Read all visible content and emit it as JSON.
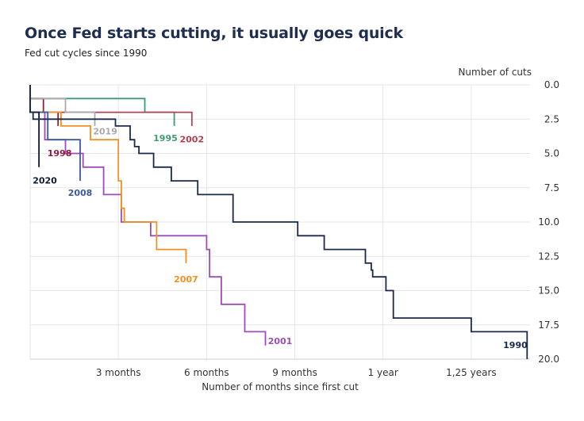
{
  "chart_data": {
    "type": "line",
    "title": "Once Fed starts cutting, it usually goes quick",
    "subtitle": "Fed cut cycles since 1990",
    "xlabel": "Number of months since first cut",
    "ylabel": "Number of cuts",
    "xlim": [
      0,
      17
    ],
    "ylim": [
      20,
      0
    ],
    "x_ticks": [
      {
        "value": 3,
        "label": "3 months"
      },
      {
        "value": 6,
        "label": "6 months"
      },
      {
        "value": 9,
        "label": "9 months"
      },
      {
        "value": 12,
        "label": "1 year"
      },
      {
        "value": 15,
        "label": "1,25 years"
      }
    ],
    "y_ticks": [
      0,
      2.5,
      5,
      7.5,
      10,
      12.5,
      15,
      17.5,
      20
    ],
    "grid": true,
    "series": [
      {
        "name": "1990",
        "color": "#1b2a4a",
        "x": [
          0,
          0,
          0.1,
          0.1,
          2.9,
          2.9,
          3.4,
          3.4,
          3.55,
          3.55,
          3.7,
          3.7,
          4.2,
          4.2,
          4.8,
          4.8,
          5.7,
          5.7,
          6.9,
          6.9,
          9.1,
          9.1,
          10,
          10,
          11.4,
          11.4,
          11.6,
          11.6,
          11.65,
          11.65,
          12.1,
          12.1,
          12.35,
          12.35,
          15,
          15,
          16.9,
          16.9
        ],
        "y": [
          0,
          2,
          2,
          2.5,
          2.5,
          3,
          3,
          4,
          4,
          4.5,
          4.5,
          5,
          5,
          6,
          6,
          7,
          7,
          8,
          8,
          10,
          10,
          11,
          11,
          12,
          12,
          13,
          13,
          13.5,
          13.5,
          14,
          14,
          15,
          15,
          17,
          17,
          18,
          18,
          20
        ]
      },
      {
        "name": "1995",
        "color": "#3f9a72",
        "x": [
          0,
          0,
          3.9,
          3.9,
          4.9,
          4.9
        ],
        "y": [
          0,
          1,
          1,
          2,
          2,
          3
        ]
      },
      {
        "name": "1998",
        "color": "#8b1e3f",
        "x": [
          0,
          0,
          0.45,
          0.45,
          0.95,
          0.95
        ],
        "y": [
          0,
          1,
          1,
          2,
          2,
          3
        ]
      },
      {
        "name": "2001",
        "color": "#9a4fb5",
        "x": [
          0,
          0,
          0.5,
          0.5,
          1.2,
          1.2,
          1.8,
          1.8,
          2.5,
          2.5,
          3.1,
          3.1,
          4.1,
          4.1,
          6,
          6,
          6.1,
          6.1,
          6.5,
          6.5,
          7.3,
          7.3,
          8.0,
          8.0
        ],
        "y": [
          0,
          2,
          2,
          4,
          4,
          5,
          5,
          6,
          6,
          8,
          8,
          10,
          10,
          11,
          11,
          12,
          12,
          14,
          14,
          16,
          16,
          18,
          18,
          19
        ]
      },
      {
        "name": "2002",
        "color": "#b04251",
        "x": [
          0,
          0,
          5.5,
          5.5
        ],
        "y": [
          0,
          2,
          2,
          3
        ]
      },
      {
        "name": "2007",
        "color": "#f29023",
        "x": [
          0,
          0,
          1.05,
          1.05,
          2.05,
          2.05,
          3.0,
          3.0,
          3.1,
          3.1,
          3.2,
          3.2,
          4.3,
          4.3,
          5.3,
          5.3
        ],
        "y": [
          0,
          2,
          2,
          3,
          3,
          4,
          4,
          7,
          7,
          9,
          9,
          10,
          10,
          12,
          12,
          13
        ]
      },
      {
        "name": "2008",
        "color": "#3f5a9a",
        "x": [
          0,
          0,
          0.6,
          0.6,
          1.7,
          1.7
        ],
        "y": [
          0,
          2,
          2,
          4,
          4,
          7
        ]
      },
      {
        "name": "2019",
        "color": "#aaaaaa",
        "x": [
          0,
          0,
          1.2,
          1.2,
          2.2,
          2.2
        ],
        "y": [
          0,
          1,
          1,
          2,
          2,
          3
        ]
      },
      {
        "name": "2020",
        "color": "#111a33",
        "x": [
          0,
          0,
          0.3,
          0.3
        ],
        "y": [
          0,
          2,
          2,
          6
        ]
      }
    ],
    "annotations": [
      {
        "text": "1990",
        "x": 16.5,
        "y": 19.2,
        "series": "1990"
      },
      {
        "text": "1995",
        "x": 4.6,
        "y": 4.1,
        "series": "1995"
      },
      {
        "text": "1998",
        "x": 1.0,
        "y": 5.2,
        "series": "1998"
      },
      {
        "text": "2001",
        "x": 8.5,
        "y": 18.9,
        "series": "2001"
      },
      {
        "text": "2002",
        "x": 5.5,
        "y": 4.2,
        "series": "2002"
      },
      {
        "text": "2007",
        "x": 5.3,
        "y": 14.4,
        "series": "2007"
      },
      {
        "text": "2008",
        "x": 1.7,
        "y": 8.1,
        "series": "2008"
      },
      {
        "text": "2019",
        "x": 2.55,
        "y": 3.6,
        "series": "2019"
      },
      {
        "text": "2020",
        "x": 0.5,
        "y": 7.2,
        "series": "2020"
      }
    ]
  }
}
